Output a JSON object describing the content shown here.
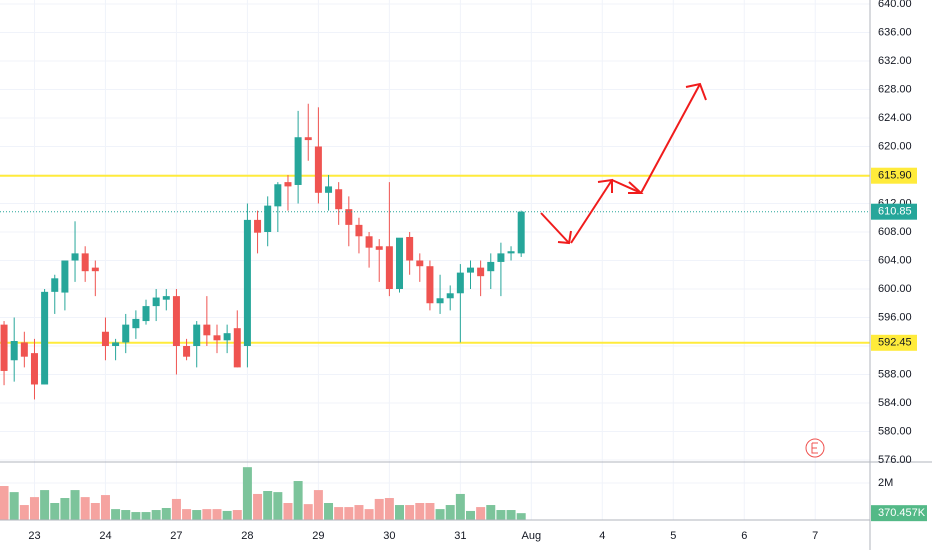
{
  "chart_data": {
    "type": "candlestick",
    "open": [
      595,
      590,
      592.5,
      591,
      586.6,
      599.6,
      599.5,
      604,
      605,
      603,
      594,
      592,
      592.5,
      594.5,
      595.5,
      597.6,
      598.5,
      599,
      592,
      592,
      595,
      593.5,
      592.8,
      594.5,
      592,
      609.7,
      608,
      611.6,
      615,
      614.6,
      621.3,
      620,
      613.5,
      614,
      611.2,
      609,
      607.4,
      606,
      606,
      600,
      607.3,
      604,
      603.2,
      598,
      598.7,
      599.4,
      602.3,
      603,
      602.5,
      603.8,
      605,
      605
    ],
    "high": [
      595.5,
      596,
      594,
      593,
      600,
      602,
      604,
      609.5,
      606,
      604,
      596,
      593,
      596.5,
      597,
      598.5,
      600,
      600,
      600,
      593,
      595.5,
      599,
      595,
      595,
      597,
      612,
      611,
      613,
      615,
      616,
      625,
      626,
      625.5,
      616,
      615,
      613,
      610,
      608,
      607,
      615,
      607,
      608,
      605,
      604,
      602,
      600.5,
      603.5,
      604,
      604,
      605,
      606.5,
      606,
      611
    ],
    "low": [
      586.5,
      587,
      589,
      584.5,
      586.6,
      596.5,
      597,
      601,
      601,
      599,
      590,
      590,
      591,
      593,
      595,
      595.5,
      597,
      588,
      590,
      589,
      592,
      591,
      591,
      589,
      589,
      605,
      606,
      608,
      611,
      612,
      618,
      612,
      611,
      609,
      606,
      605,
      603,
      601,
      599,
      599.5,
      602,
      601,
      597,
      596.5,
      597,
      592.5,
      600,
      599,
      600,
      599,
      604,
      604.5
    ],
    "close": [
      588.5,
      592.7,
      590.5,
      586.6,
      599.6,
      601.5,
      604,
      605,
      602.5,
      602.5,
      592,
      592.5,
      595,
      595.8,
      597.6,
      598.8,
      599,
      592,
      590.5,
      595,
      593.5,
      592.8,
      593.8,
      589,
      609.7,
      607.9,
      611.7,
      614.7,
      614.4,
      621.3,
      620.9,
      613.5,
      614.4,
      611.2,
      609,
      607.4,
      605.8,
      605.5,
      600,
      607.2,
      604,
      603.2,
      598,
      598.7,
      599.4,
      602.3,
      603,
      601.8,
      603.8,
      605,
      605.3,
      610.85
    ],
    "up_color": "#26a69a",
    "down_color": "#ef5350",
    "xlim": [
      -0.4,
      85.4
    ],
    "xticks": [
      {
        "value": 3,
        "label": "23"
      },
      {
        "value": 10,
        "label": "24"
      },
      {
        "value": 17,
        "label": "27"
      },
      {
        "value": 24,
        "label": "28"
      },
      {
        "value": 31,
        "label": "29"
      },
      {
        "value": 38,
        "label": "30"
      },
      {
        "value": 45,
        "label": "31"
      },
      {
        "value": 52,
        "label": "Aug"
      },
      {
        "value": 59,
        "label": "4"
      },
      {
        "value": 66,
        "label": "5"
      },
      {
        "value": 73,
        "label": "6"
      },
      {
        "value": 80,
        "label": "7"
      }
    ],
    "ylim": [
      575.72,
      640.56
    ],
    "yticks": [
      {
        "value": 576,
        "label": "576.00"
      },
      {
        "value": 580,
        "label": "580.00"
      },
      {
        "value": 584,
        "label": "584.00"
      },
      {
        "value": 588,
        "label": "588.00"
      },
      {
        "value": 592,
        "label": "592.00"
      },
      {
        "value": 596,
        "label": "596.00"
      },
      {
        "value": 600,
        "label": "600.00"
      },
      {
        "value": 604,
        "label": "604.00"
      },
      {
        "value": 608,
        "label": "608.00"
      },
      {
        "value": 612,
        "label": "612.00"
      },
      {
        "value": 616,
        "label": "616.00"
      },
      {
        "value": 620,
        "label": "620.00"
      },
      {
        "value": 624,
        "label": "624.00"
      },
      {
        "value": 628,
        "label": "628.00"
      },
      {
        "value": 632,
        "label": "632.00"
      },
      {
        "value": 636,
        "label": "636.00"
      },
      {
        "value": 640,
        "label": "640.00"
      }
    ],
    "grid": true,
    "levels": [
      {
        "value": 615.9,
        "label": "615.90",
        "color": "#ffeb3b"
      },
      {
        "value": 592.45,
        "label": "592.45",
        "color": "#ffeb3b"
      }
    ],
    "volume": {
      "values": [
        1.84,
        1.51,
        0.81,
        1.24,
        1.62,
        0.92,
        1.19,
        1.62,
        1.24,
        0.92,
        1.35,
        0.59,
        0.54,
        0.43,
        0.43,
        0.54,
        0.65,
        1.14,
        0.59,
        0.54,
        0.59,
        0.59,
        0.49,
        0.54,
        2.86,
        1.41,
        1.57,
        1.51,
        0.92,
        2.11,
        0.86,
        1.62,
        0.92,
        0.7,
        0.7,
        0.81,
        0.59,
        1.14,
        1.19,
        0.81,
        0.81,
        0.92,
        0.92,
        0.59,
        0.81,
        1.41,
        0.49,
        0.7,
        0.81,
        0.54,
        0.54,
        0.370457
      ],
      "last_label": "370.457K",
      "up_color": "#7cc49b",
      "down_color": "#f5a3a0",
      "ylim": [
        0,
        3.14
      ],
      "yticks": [
        {
          "value": 2,
          "label": "2M"
        }
      ]
    }
  }
}
